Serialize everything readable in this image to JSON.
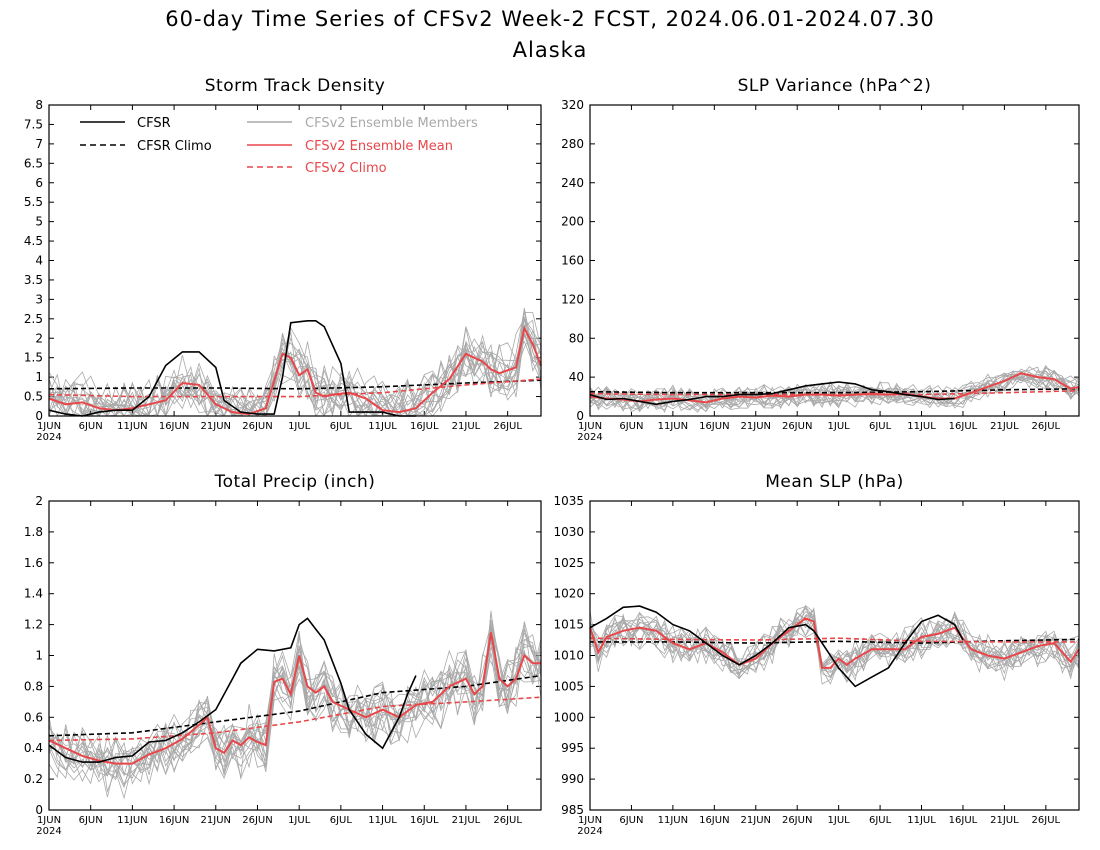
{
  "figure": {
    "title": "60-day Time Series of CFSv2 Week-2 FCST, 2024.06.01-2024.07.30",
    "subtitle": "Alaska"
  },
  "colors": {
    "cfsr": "#000000",
    "ensemble_members": "#a9a9a9",
    "ensemble_mean": "#e8474a",
    "cfsv2_climo": "#e8474a"
  },
  "legend": {
    "cfsr": "CFSR",
    "cfsr_climo": "CFSR Climo",
    "members": "CFSv2 Ensemble Members",
    "mean": "CFSv2 Ensemble Mean",
    "cfsv2_climo": "CFSv2 Climo"
  },
  "x_axis": {
    "days": 60,
    "tick_days": [
      0,
      5,
      10,
      15,
      20,
      25,
      30,
      35,
      40,
      45,
      50,
      55
    ],
    "tick_labels": [
      "1JUN",
      "6JUN",
      "11JUN",
      "16JUN",
      "21JUN",
      "26JUN",
      "1JUL",
      "6JUL",
      "11JUL",
      "16JUL",
      "21JUL",
      "26JUL"
    ],
    "year_label": "2024"
  },
  "chart_data": [
    {
      "id": "storm",
      "type": "line",
      "title": "Storm Track Density",
      "ylim": [
        0,
        8
      ],
      "yticks": [
        0,
        0.5,
        1,
        1.5,
        2,
        2.5,
        3,
        3.5,
        4,
        4.5,
        5,
        5.5,
        6,
        6.5,
        7,
        7.5,
        8
      ],
      "ytick_labels": [
        "0",
        "0.5",
        "1",
        "1.5",
        "2",
        "2.5",
        "3",
        "3.5",
        "4",
        "4.5",
        "5",
        "5.5",
        "6",
        "6.5",
        "7",
        "7.5",
        "8"
      ],
      "member_spread": 0.6,
      "member_count": 16,
      "series": [
        {
          "key": "cfsr",
          "style": "solid",
          "color": "#000000",
          "x": [
            0,
            2,
            4,
            6,
            8,
            10,
            12,
            14,
            16,
            18,
            20,
            21,
            23,
            25,
            27,
            28,
            29,
            31,
            32,
            33,
            35,
            36,
            37,
            38,
            40,
            41,
            42,
            43,
            44
          ],
          "y": [
            0.15,
            0.05,
            0.0,
            0.1,
            0.15,
            0.15,
            0.5,
            1.3,
            1.65,
            1.65,
            1.25,
            0.4,
            0.1,
            0.05,
            0.05,
            1.0,
            2.4,
            2.45,
            2.45,
            2.3,
            1.35,
            0.1,
            0.1,
            0.1,
            0.1,
            0.05,
            0.0,
            0.0,
            0.0
          ]
        },
        {
          "key": "cfsr_climo",
          "style": "dashed",
          "color": "#000000",
          "x": [
            0,
            10,
            20,
            30,
            40,
            50,
            59
          ],
          "y": [
            0.7,
            0.72,
            0.72,
            0.7,
            0.75,
            0.85,
            0.92
          ]
        },
        {
          "key": "mean",
          "style": "solid",
          "color": "#e8474a",
          "x": [
            0,
            2,
            4,
            6,
            8,
            10,
            12,
            14,
            16,
            18,
            20,
            22,
            24,
            26,
            28,
            29,
            30,
            31,
            32,
            33,
            34,
            36,
            38,
            40,
            42,
            44,
            46,
            48,
            50,
            51,
            52,
            53,
            54,
            56,
            57,
            58,
            59
          ],
          "y": [
            0.45,
            0.3,
            0.35,
            0.2,
            0.15,
            0.2,
            0.3,
            0.4,
            0.85,
            0.8,
            0.3,
            0.1,
            0.05,
            0.2,
            1.6,
            1.5,
            1.05,
            1.2,
            0.6,
            0.5,
            0.55,
            0.6,
            0.45,
            0.15,
            0.1,
            0.2,
            0.6,
            0.95,
            1.6,
            1.5,
            1.4,
            1.2,
            1.1,
            1.25,
            2.25,
            1.85,
            1.3
          ]
        },
        {
          "key": "cfsv2_climo",
          "style": "dashed",
          "color": "#e8474a",
          "x": [
            0,
            10,
            20,
            30,
            40,
            50,
            59
          ],
          "y": [
            0.55,
            0.5,
            0.5,
            0.5,
            0.6,
            0.8,
            0.95
          ]
        }
      ]
    },
    {
      "id": "slpvar",
      "type": "line",
      "title": "SLP Variance (hPa^2)",
      "ylim": [
        0,
        320
      ],
      "yticks": [
        0,
        40,
        80,
        120,
        160,
        200,
        240,
        280,
        320
      ],
      "ytick_labels": [
        "0",
        "40",
        "80",
        "120",
        "160",
        "200",
        "240",
        "280",
        "320"
      ],
      "member_spread": 10,
      "member_count": 16,
      "series": [
        {
          "key": "cfsr",
          "style": "solid",
          "color": "#000000",
          "x": [
            0,
            2,
            4,
            6,
            8,
            10,
            12,
            14,
            16,
            18,
            20,
            22,
            24,
            26,
            28,
            30,
            32,
            34,
            36,
            38,
            40,
            42,
            44
          ],
          "y": [
            22,
            17,
            18,
            15,
            12,
            15,
            17,
            20,
            20,
            22,
            22,
            23,
            27,
            31,
            33,
            35,
            33,
            27,
            25,
            22,
            20,
            17,
            18
          ]
        },
        {
          "key": "cfsr_climo",
          "style": "dashed",
          "color": "#000000",
          "x": [
            0,
            10,
            20,
            30,
            40,
            50,
            59
          ],
          "y": [
            25,
            24,
            24,
            24,
            25,
            27,
            28
          ]
        },
        {
          "key": "mean",
          "style": "solid",
          "color": "#e8474a",
          "x": [
            0,
            2,
            4,
            6,
            8,
            10,
            12,
            14,
            16,
            18,
            20,
            22,
            24,
            26,
            28,
            30,
            32,
            34,
            36,
            38,
            40,
            42,
            44,
            46,
            48,
            50,
            52,
            54,
            56,
            58,
            59
          ],
          "y": [
            20,
            18,
            17,
            15,
            17,
            18,
            16,
            14,
            18,
            20,
            19,
            21,
            20,
            22,
            22,
            21,
            22,
            23,
            22,
            23,
            20,
            18,
            18,
            24,
            30,
            36,
            44,
            40,
            38,
            28,
            30
          ]
        },
        {
          "key": "cfsv2_climo",
          "style": "dashed",
          "color": "#e8474a",
          "x": [
            0,
            10,
            20,
            30,
            40,
            50,
            59
          ],
          "y": [
            23,
            22,
            22,
            22,
            22,
            24,
            26
          ]
        }
      ]
    },
    {
      "id": "precip",
      "type": "line",
      "title": "Total Precip (inch)",
      "ylim": [
        0,
        2
      ],
      "yticks": [
        0,
        0.2,
        0.4,
        0.6,
        0.8,
        1,
        1.2,
        1.4,
        1.6,
        1.8,
        2
      ],
      "ytick_labels": [
        "0",
        "0.2",
        "0.4",
        "0.6",
        "0.8",
        "1",
        "1.2",
        "1.4",
        "1.6",
        "1.8",
        "2"
      ],
      "member_spread": 0.16,
      "member_count": 16,
      "series": [
        {
          "key": "cfsr",
          "style": "solid",
          "color": "#000000",
          "x": [
            0,
            2,
            4,
            6,
            8,
            10,
            12,
            14,
            16,
            18,
            20,
            22,
            23,
            25,
            27,
            29,
            30,
            31,
            32,
            33,
            35,
            36,
            38,
            40,
            42,
            43,
            44
          ],
          "y": [
            0.42,
            0.34,
            0.31,
            0.31,
            0.34,
            0.35,
            0.44,
            0.45,
            0.5,
            0.57,
            0.65,
            0.85,
            0.95,
            1.04,
            1.03,
            1.05,
            1.2,
            1.24,
            1.17,
            1.1,
            0.82,
            0.65,
            0.49,
            0.4,
            0.6,
            0.75,
            0.87
          ]
        },
        {
          "key": "cfsr_climo",
          "style": "dashed",
          "color": "#000000",
          "x": [
            0,
            10,
            20,
            30,
            40,
            50,
            59
          ],
          "y": [
            0.48,
            0.5,
            0.57,
            0.64,
            0.76,
            0.8,
            0.87
          ]
        },
        {
          "key": "mean",
          "style": "solid",
          "color": "#e8474a",
          "x": [
            0,
            2,
            4,
            6,
            8,
            10,
            12,
            14,
            16,
            18,
            19,
            20,
            21,
            22,
            23,
            24,
            25,
            26,
            27,
            28,
            29,
            30,
            31,
            32,
            33,
            34,
            36,
            38,
            40,
            42,
            44,
            46,
            48,
            50,
            51,
            52,
            53,
            54,
            55,
            56,
            57,
            58,
            59
          ],
          "y": [
            0.45,
            0.4,
            0.35,
            0.32,
            0.3,
            0.3,
            0.36,
            0.4,
            0.46,
            0.55,
            0.6,
            0.4,
            0.37,
            0.45,
            0.42,
            0.47,
            0.44,
            0.42,
            0.83,
            0.85,
            0.75,
            1.0,
            0.8,
            0.76,
            0.8,
            0.7,
            0.65,
            0.6,
            0.65,
            0.6,
            0.68,
            0.7,
            0.8,
            0.85,
            0.75,
            0.8,
            1.15,
            0.85,
            0.8,
            0.85,
            1.0,
            0.95,
            0.95
          ]
        },
        {
          "key": "cfsv2_climo",
          "style": "dashed",
          "color": "#e8474a",
          "x": [
            0,
            10,
            20,
            30,
            40,
            50,
            59
          ],
          "y": [
            0.45,
            0.46,
            0.5,
            0.57,
            0.67,
            0.7,
            0.73
          ]
        }
      ]
    },
    {
      "id": "meanslp",
      "type": "line",
      "title": "Mean SLP (hPa)",
      "ylim": [
        985,
        1035
      ],
      "yticks": [
        985,
        990,
        995,
        1000,
        1005,
        1010,
        1015,
        1020,
        1025,
        1030,
        1035
      ],
      "ytick_labels": [
        "985",
        "990",
        "995",
        "1000",
        "1005",
        "1010",
        "1015",
        "1020",
        "1025",
        "1030",
        "1035"
      ],
      "member_spread": 2.5,
      "member_count": 16,
      "series": [
        {
          "key": "cfsr",
          "style": "solid",
          "color": "#000000",
          "x": [
            0,
            2,
            4,
            6,
            8,
            10,
            12,
            14,
            16,
            18,
            20,
            22,
            24,
            26,
            27,
            28,
            30,
            32,
            34,
            36,
            38,
            40,
            42,
            44,
            45
          ],
          "y": [
            1014.5,
            1016,
            1017.8,
            1018,
            1017,
            1015,
            1014,
            1012,
            1010,
            1008.5,
            1010,
            1012,
            1014.5,
            1015,
            1014,
            1012,
            1008,
            1005,
            1006.5,
            1008,
            1012,
            1015.5,
            1016.5,
            1015,
            1012.5
          ]
        },
        {
          "key": "cfsr_climo",
          "style": "dashed",
          "color": "#000000",
          "x": [
            0,
            10,
            20,
            30,
            40,
            50,
            59
          ],
          "y": [
            1012.2,
            1012.2,
            1012,
            1012.3,
            1012,
            1012.4,
            1012.6
          ]
        },
        {
          "key": "mean",
          "style": "solid",
          "color": "#e8474a",
          "x": [
            0,
            1,
            2,
            4,
            6,
            8,
            10,
            12,
            14,
            16,
            18,
            20,
            22,
            24,
            26,
            27,
            28,
            29,
            30,
            31,
            32,
            34,
            36,
            38,
            40,
            42,
            44,
            46,
            48,
            50,
            52,
            54,
            56,
            58,
            59
          ],
          "y": [
            1014.5,
            1010.5,
            1013,
            1014,
            1014.5,
            1014,
            1012,
            1011,
            1012,
            1010.5,
            1008.5,
            1009.5,
            1012,
            1014,
            1016,
            1015.5,
            1008,
            1008,
            1009.5,
            1008.5,
            1009.5,
            1011,
            1011,
            1011,
            1013,
            1013.5,
            1014.5,
            1011,
            1010,
            1009.5,
            1010.5,
            1011.5,
            1012,
            1009,
            1011
          ]
        },
        {
          "key": "cfsv2_climo",
          "style": "dashed",
          "color": "#e8474a",
          "x": [
            0,
            10,
            20,
            30,
            40,
            50,
            59
          ],
          "y": [
            1012.8,
            1012.6,
            1012.5,
            1012.8,
            1012.3,
            1012.2,
            1012.2
          ]
        }
      ]
    }
  ]
}
